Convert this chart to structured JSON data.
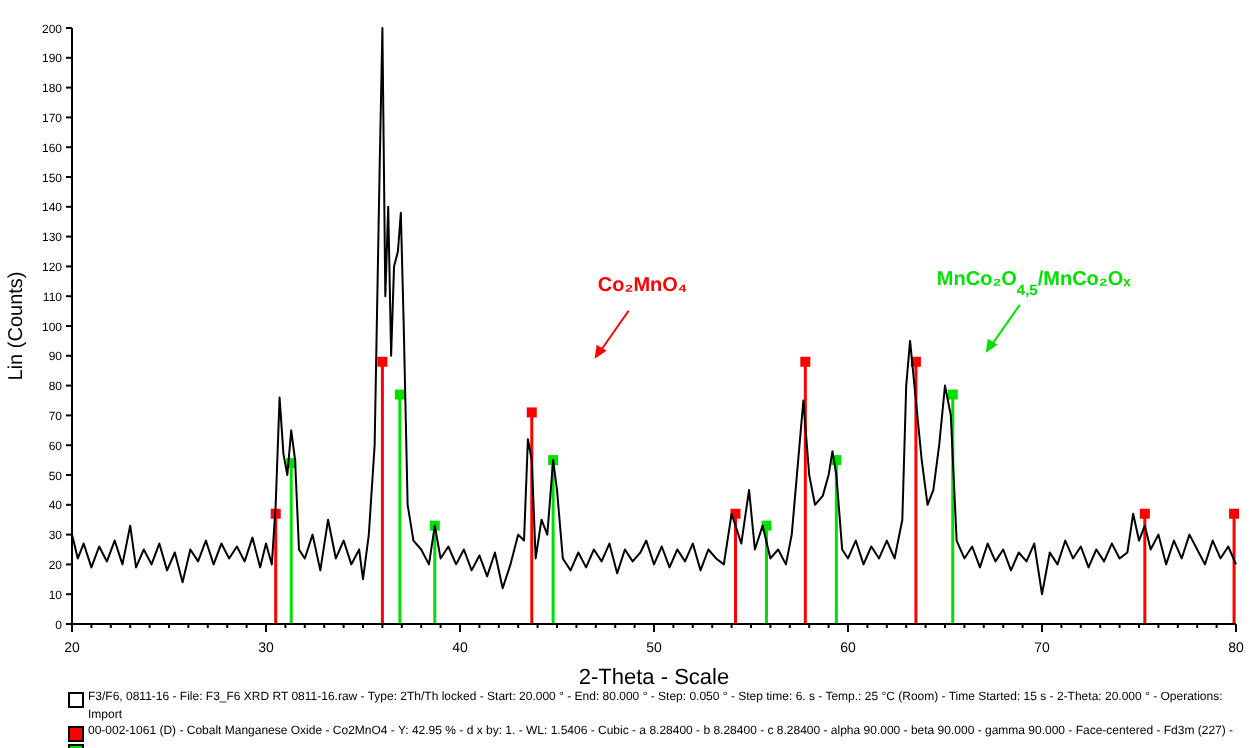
{
  "chart_data": {
    "type": "line",
    "xlabel": "2-Theta - Scale",
    "ylabel": "Lin (Counts)",
    "xlim": [
      20,
      80
    ],
    "ylim": [
      0,
      200
    ],
    "xticks": [
      20,
      {
        "value": 21,
        "label": null
      },
      {
        "value": 22,
        "label": null
      },
      {
        "value": 23,
        "label": null
      },
      {
        "value": 24,
        "label": null
      },
      {
        "value": 25,
        "label": null
      },
      {
        "value": 26,
        "label": null
      },
      {
        "value": 27,
        "label": null
      },
      {
        "value": 28,
        "label": null
      },
      {
        "value": 29,
        "label": null
      },
      30,
      {
        "value": 31,
        "label": null
      },
      {
        "value": 32,
        "label": null
      },
      {
        "value": 33,
        "label": null
      },
      {
        "value": 34,
        "label": null
      },
      {
        "value": 35,
        "label": null
      },
      {
        "value": 36,
        "label": null
      },
      {
        "value": 37,
        "label": null
      },
      {
        "value": 38,
        "label": null
      },
      {
        "value": 39,
        "label": null
      },
      40,
      {
        "value": 41,
        "label": null
      },
      {
        "value": 42,
        "label": null
      },
      {
        "value": 43,
        "label": null
      },
      {
        "value": 44,
        "label": null
      },
      {
        "value": 45,
        "label": null
      },
      {
        "value": 46,
        "label": null
      },
      {
        "value": 47,
        "label": null
      },
      {
        "value": 48,
        "label": null
      },
      {
        "value": 49,
        "label": null
      },
      50,
      {
        "value": 51,
        "label": null
      },
      {
        "value": 52,
        "label": null
      },
      {
        "value": 53,
        "label": null
      },
      {
        "value": 54,
        "label": null
      },
      {
        "value": 55,
        "label": null
      },
      {
        "value": 56,
        "label": null
      },
      {
        "value": 57,
        "label": null
      },
      {
        "value": 58,
        "label": null
      },
      {
        "value": 59,
        "label": null
      },
      60,
      {
        "value": 61,
        "label": null
      },
      {
        "value": 62,
        "label": null
      },
      {
        "value": 63,
        "label": null
      },
      {
        "value": 64,
        "label": null
      },
      {
        "value": 65,
        "label": null
      },
      {
        "value": 66,
        "label": null
      },
      {
        "value": 67,
        "label": null
      },
      {
        "value": 68,
        "label": null
      },
      {
        "value": 69,
        "label": null
      },
      70,
      {
        "value": 71,
        "label": null
      },
      {
        "value": 72,
        "label": null
      },
      {
        "value": 73,
        "label": null
      },
      {
        "value": 74,
        "label": null
      },
      {
        "value": 75,
        "label": null
      },
      {
        "value": 76,
        "label": null
      },
      {
        "value": 77,
        "label": null
      },
      {
        "value": 78,
        "label": null
      },
      {
        "value": 79,
        "label": null
      },
      80
    ],
    "yticks": [
      0,
      10,
      20,
      30,
      40,
      50,
      60,
      70,
      80,
      90,
      100,
      110,
      120,
      130,
      140,
      150,
      160,
      170,
      180,
      190,
      200
    ],
    "grid": false,
    "series": [
      {
        "color": "#000000",
        "x": [
          20,
          20.3,
          20.6,
          21,
          21.4,
          21.8,
          22.2,
          22.6,
          23,
          23.3,
          23.7,
          24.1,
          24.5,
          24.9,
          25.3,
          25.7,
          26.1,
          26.5,
          26.9,
          27.3,
          27.7,
          28.1,
          28.5,
          28.9,
          29.3,
          29.7,
          30,
          30.3,
          30.5,
          30.7,
          30.9,
          31.1,
          31.3,
          31.5,
          31.7,
          32,
          32.4,
          32.8,
          33.2,
          33.6,
          34,
          34.4,
          34.8,
          35,
          35.3,
          35.6,
          35.85,
          36,
          36.15,
          36.3,
          36.45,
          36.6,
          36.8,
          36.95,
          37.1,
          37.3,
          37.6,
          38,
          38.4,
          38.7,
          39,
          39.4,
          39.8,
          40.2,
          40.6,
          41,
          41.4,
          41.8,
          42.2,
          42.6,
          43,
          43.3,
          43.5,
          43.7,
          43.9,
          44.2,
          44.5,
          44.8,
          45,
          45.3,
          45.7,
          46.1,
          46.5,
          46.9,
          47.3,
          47.7,
          48.1,
          48.5,
          48.9,
          49.3,
          49.6,
          50,
          50.4,
          50.8,
          51.2,
          51.6,
          52,
          52.4,
          52.8,
          53.2,
          53.6,
          54,
          54.2,
          54.5,
          54.9,
          55.2,
          55.6,
          56,
          56.4,
          56.8,
          57.1,
          57.5,
          57.7,
          58,
          58.3,
          58.7,
          59,
          59.2,
          59.4,
          59.7,
          60,
          60.4,
          60.8,
          61.2,
          61.6,
          62,
          62.4,
          62.8,
          63,
          63.2,
          63.5,
          63.8,
          64.1,
          64.4,
          64.7,
          65,
          65.3,
          65.6,
          66,
          66.4,
          66.8,
          67.2,
          67.6,
          68,
          68.4,
          68.8,
          69.2,
          69.6,
          70,
          70.4,
          70.8,
          71.2,
          71.6,
          72,
          72.4,
          72.8,
          73.2,
          73.6,
          74,
          74.4,
          74.7,
          75,
          75.3,
          75.6,
          76,
          76.4,
          76.8,
          77.2,
          77.6,
          78,
          78.4,
          78.8,
          79.2,
          79.6,
          80
        ],
        "values": [
          30,
          22,
          27,
          19,
          26,
          21,
          28,
          20,
          33,
          19,
          25,
          20,
          27,
          18,
          24,
          14,
          25,
          21,
          28,
          20,
          27,
          22,
          26,
          21,
          29,
          19,
          27,
          20,
          40,
          76,
          57,
          50,
          65,
          55,
          25,
          22,
          30,
          18,
          35,
          22,
          28,
          20,
          25,
          15,
          30,
          60,
          150,
          200,
          110,
          140,
          90,
          120,
          125,
          138,
          100,
          40,
          28,
          25,
          20,
          33,
          22,
          26,
          20,
          25,
          18,
          23,
          16,
          24,
          12,
          20,
          30,
          28,
          62,
          55,
          22,
          35,
          30,
          55,
          45,
          22,
          18,
          24,
          19,
          25,
          21,
          27,
          17,
          25,
          21,
          24,
          28,
          20,
          26,
          19,
          25,
          21,
          27,
          18,
          25,
          22,
          20,
          37,
          33,
          27,
          45,
          25,
          33,
          22,
          25,
          20,
          30,
          60,
          75,
          50,
          40,
          43,
          50,
          58,
          50,
          25,
          22,
          28,
          20,
          26,
          22,
          28,
          22,
          35,
          80,
          95,
          75,
          55,
          40,
          45,
          60,
          80,
          70,
          28,
          22,
          26,
          19,
          27,
          21,
          25,
          18,
          24,
          21,
          27,
          10,
          24,
          20,
          28,
          22,
          26,
          19,
          25,
          21,
          27,
          22,
          24,
          37,
          28,
          33,
          25,
          30,
          20,
          28,
          22,
          30,
          25,
          20,
          28,
          22,
          26,
          20
        ]
      },
      {
        "type": "lollipop",
        "color": "#ff0000",
        "marker": "square",
        "x": [
          30.5,
          36.0,
          43.7,
          54.2,
          57.8,
          63.5,
          75.3,
          79.9
        ],
        "values": [
          37,
          88,
          71,
          37,
          88,
          88,
          37,
          37
        ]
      },
      {
        "type": "lollipop",
        "color": "#00e000",
        "marker": "square",
        "x": [
          31.3,
          36.9,
          38.7,
          44.8,
          55.8,
          59.4,
          65.4
        ],
        "values": [
          54,
          77,
          33,
          55,
          33,
          55,
          77
        ]
      }
    ],
    "annotations": [
      "Co₂MnO₄",
      "MnCo₂O$_{4,5}$/MnCo₂Oₓ",
      "F3/F6, 0811-16 - File: F3_F6 XRD RT 0811-16.raw - Type: 2Th/Th locked - Start: 20.000 ° - End: 80.000 ° - Step: 0.050 ° - Step time: 6. s - Temp.: 25 °C (Room) - Time Started: 15 s - 2-Theta: 20.000 ° - Operations: Import",
      "00-002-1061 (D) - Cobalt Manganese Oxide - Co2MnO4 - Y: 42.95 % - d x by: 1. - WL: 1.5406 - Cubic - a 8.28400 - b 8.28400 - c 8.28400 - alpha 90.000 - beta 90.000 - gamma 90.000 - Face-centered - Fd3m (227) -"
    ]
  }
}
